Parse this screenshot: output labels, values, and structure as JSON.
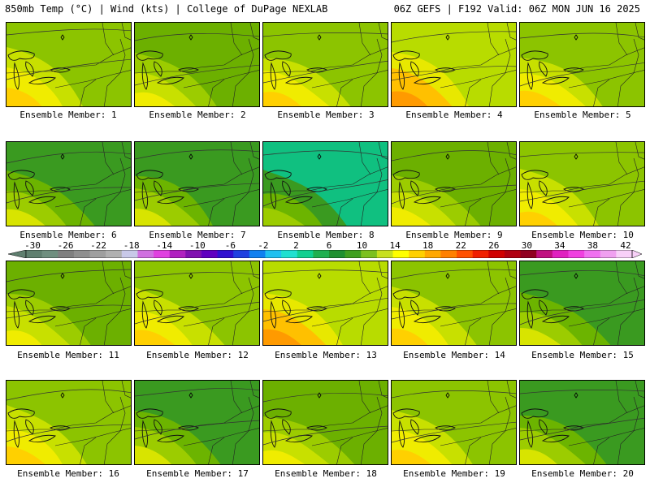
{
  "header": {
    "title_left": "850mb Temp (°C) | Wind (kts) | College of DuPage NEXLAB",
    "title_right": "06Z GEFS | F192 Valid: 06Z MON JUN 16 2025"
  },
  "panels": [
    {
      "caption": "Ensemble Member: 1",
      "regime": "warm"
    },
    {
      "caption": "Ensemble Member: 2",
      "regime": "mild"
    },
    {
      "caption": "Ensemble Member: 3",
      "regime": "warm"
    },
    {
      "caption": "Ensemble Member: 4",
      "regime": "hot"
    },
    {
      "caption": "Ensemble Member: 5",
      "regime": "warm"
    },
    {
      "caption": "Ensemble Member: 6",
      "regime": "cool"
    },
    {
      "caption": "Ensemble Member: 7",
      "regime": "cool"
    },
    {
      "caption": "Ensemble Member: 8",
      "regime": "cold"
    },
    {
      "caption": "Ensemble Member: 9",
      "regime": "mild"
    },
    {
      "caption": "Ensemble Member: 10",
      "regime": "warm"
    },
    {
      "caption": "Ensemble Member: 11",
      "regime": "mild"
    },
    {
      "caption": "Ensemble Member: 12",
      "regime": "warm"
    },
    {
      "caption": "Ensemble Member: 13",
      "regime": "hot"
    },
    {
      "caption": "Ensemble Member: 14",
      "regime": "warm"
    },
    {
      "caption": "Ensemble Member: 15",
      "regime": "cool"
    },
    {
      "caption": "Ensemble Member: 16",
      "regime": "warm"
    },
    {
      "caption": "Ensemble Member: 17",
      "regime": "cool"
    },
    {
      "caption": "Ensemble Member: 18",
      "regime": "mild"
    },
    {
      "caption": "Ensemble Member: 19",
      "regime": "warm"
    },
    {
      "caption": "Ensemble Member: 20",
      "regime": "cool"
    }
  ],
  "colorbar": {
    "labels": [
      "-30",
      "-26",
      "-22",
      "-18",
      "-14",
      "-10",
      "-6",
      "-2",
      "2",
      "6",
      "10",
      "14",
      "18",
      "22",
      "26",
      "30",
      "34",
      "38",
      "42"
    ],
    "colors": [
      "#5f7f6f",
      "#6f8f7f",
      "#7f7f7f",
      "#8f8f8f",
      "#9f9f9f",
      "#b0b0b0",
      "#c8c8e8",
      "#d070e0",
      "#e040e0",
      "#b020c0",
      "#8010b0",
      "#6000c0",
      "#3010d0",
      "#2040e0",
      "#1080f0",
      "#20c0f0",
      "#20e0d0",
      "#10d090",
      "#20b050",
      "#209030",
      "#40a020",
      "#7cc020",
      "#c8e020",
      "#ffff00",
      "#ffd000",
      "#ffa800",
      "#ff8000",
      "#ff5000",
      "#f02000",
      "#d00000",
      "#b00010",
      "#900020",
      "#c01080",
      "#e020c0",
      "#f040e0",
      "#f070f0",
      "#f0a0f0",
      "#f8d0f8"
    ]
  },
  "regime_colors": {
    "hot": [
      "#ff9a00",
      "#ffc000",
      "#e8e800",
      "#b8dc00"
    ],
    "warm": [
      "#ffd000",
      "#f0ec00",
      "#c8e000",
      "#8cc400"
    ],
    "mild": [
      "#f0ec00",
      "#c8e000",
      "#9ccc00",
      "#6cb000"
    ],
    "cool": [
      "#d8e400",
      "#9ccc00",
      "#6cb400",
      "#3a9a20"
    ],
    "cold": [
      "#9ccc00",
      "#6cb400",
      "#3a9a20",
      "#10c080"
    ]
  }
}
